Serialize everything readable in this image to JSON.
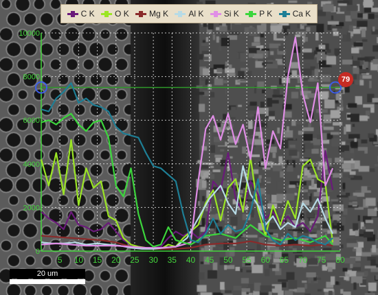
{
  "legend": [
    {
      "label": "C  K",
      "color": "#6a1a7a"
    },
    {
      "label": "O  K",
      "color": "#9be624"
    },
    {
      "label": "Mg K",
      "color": "#8a2a2a"
    },
    {
      "label": "Al K",
      "color": "#b7dbe6"
    },
    {
      "label": "Si K",
      "color": "#e08ee6"
    },
    {
      "label": "P  K",
      "color": "#3cd63c"
    },
    {
      "label": "Ca K",
      "color": "#1e7f96"
    }
  ],
  "scale_bar": {
    "label": "20 um"
  },
  "marker": {
    "label": "79"
  },
  "chart_data": {
    "type": "line",
    "xlim": [
      0,
      80
    ],
    "ylim": [
      0,
      10000
    ],
    "x_ticks": [
      "5",
      "10",
      "15",
      "20",
      "25",
      "30",
      "35",
      "40",
      "45",
      "50",
      "55",
      "60",
      "65",
      "70",
      "75",
      "80"
    ],
    "y_ticks": [
      "0",
      "2000",
      "4000",
      "6000",
      "8000",
      "10000"
    ],
    "grid": true,
    "legend_position": "top",
    "cursor_line_y": 7500,
    "axis_color": "#44d63c",
    "series": [
      {
        "name": "C  K",
        "color": "#6a1a7a",
        "x": [
          0,
          2,
          4,
          6,
          8,
          10,
          12,
          14,
          16,
          18,
          20,
          22,
          24,
          26,
          28,
          30,
          32,
          34,
          36,
          38,
          40,
          42,
          44,
          46,
          48,
          50,
          52,
          54,
          56,
          58,
          60,
          62,
          64,
          66,
          68,
          70,
          72,
          74,
          76,
          78
        ],
        "y": [
          1800,
          1500,
          1300,
          1000,
          1800,
          1200,
          1100,
          900,
          1000,
          1300,
          900,
          500,
          300,
          200,
          150,
          150,
          200,
          600,
          900,
          700,
          900,
          600,
          900,
          3200,
          2800,
          4500,
          2400,
          1800,
          3200,
          2600,
          1500,
          1800,
          1200,
          1600,
          1100,
          1300,
          900,
          1600,
          4600,
          2800
        ]
      },
      {
        "name": "O  K",
        "color": "#9be624",
        "x": [
          0,
          2,
          4,
          6,
          8,
          10,
          12,
          14,
          16,
          18,
          20,
          22,
          24,
          26,
          28,
          30,
          32,
          34,
          36,
          38,
          40,
          42,
          44,
          46,
          48,
          50,
          52,
          54,
          56,
          58,
          60,
          62,
          64,
          66,
          68,
          70,
          72,
          74,
          76,
          78
        ],
        "y": [
          4200,
          3000,
          4500,
          2600,
          5100,
          2100,
          3800,
          2900,
          3200,
          1600,
          1400,
          600,
          300,
          200,
          150,
          100,
          100,
          300,
          200,
          600,
          900,
          1200,
          2200,
          2800,
          1400,
          2900,
          3300,
          1800,
          4300,
          1900,
          700,
          2100,
          1200,
          2300,
          1500,
          3900,
          4200,
          3300,
          3100,
          400
        ]
      },
      {
        "name": "Mg K",
        "color": "#8a2a2a",
        "x": [
          0,
          4,
          8,
          12,
          16,
          20,
          24,
          28,
          32,
          36,
          40,
          44,
          48,
          52,
          56,
          60,
          64,
          68,
          72,
          76,
          78
        ],
        "y": [
          700,
          650,
          600,
          550,
          500,
          400,
          200,
          100,
          100,
          100,
          150,
          300,
          350,
          350,
          450,
          300,
          250,
          300,
          250,
          300,
          250
        ]
      },
      {
        "name": "Al K",
        "color": "#b7dbe6",
        "x": [
          0,
          3,
          6,
          9,
          12,
          15,
          18,
          21,
          24,
          27,
          30,
          33,
          36,
          39,
          42,
          45,
          48,
          50,
          52,
          54,
          56,
          58,
          60,
          62,
          64,
          66,
          68,
          70,
          72,
          74,
          76,
          78
        ],
        "y": [
          400,
          350,
          350,
          400,
          300,
          350,
          300,
          250,
          150,
          100,
          100,
          150,
          200,
          600,
          1500,
          2400,
          3000,
          2200,
          1700,
          3900,
          2600,
          2100,
          1200,
          1600,
          1000,
          1300,
          1100,
          2200,
          1800,
          2400,
          1500,
          800
        ]
      },
      {
        "name": "Si K",
        "color": "#e08ee6",
        "x": [
          0,
          4,
          8,
          12,
          16,
          20,
          24,
          28,
          32,
          36,
          40,
          42,
          44,
          46,
          48,
          50,
          52,
          54,
          56,
          58,
          60,
          62,
          64,
          66,
          68,
          70,
          72,
          74,
          76,
          78
        ],
        "y": [
          300,
          350,
          300,
          250,
          250,
          250,
          200,
          150,
          150,
          200,
          400,
          3200,
          5600,
          6200,
          5100,
          6300,
          4900,
          5800,
          4200,
          6600,
          3800,
          5500,
          4700,
          8000,
          9800,
          7200,
          5900,
          7700,
          3000,
          3800
        ]
      },
      {
        "name": "P  K",
        "color": "#3cd63c",
        "x": [
          0,
          2,
          4,
          6,
          8,
          10,
          12,
          14,
          16,
          18,
          20,
          22,
          24,
          26,
          28,
          30,
          32,
          34,
          36,
          38,
          40,
          44,
          48,
          52,
          56,
          60,
          64,
          68,
          72,
          76,
          78
        ],
        "y": [
          5900,
          6000,
          5800,
          6100,
          6300,
          5800,
          5500,
          5900,
          6000,
          5200,
          3000,
          2500,
          3800,
          1700,
          500,
          200,
          300,
          1100,
          500,
          400,
          300,
          700,
          800,
          600,
          1200,
          700,
          500,
          600,
          400,
          700,
          300
        ]
      },
      {
        "name": "Ca K",
        "color": "#1e7f96",
        "x": [
          0,
          2,
          4,
          6,
          8,
          10,
          12,
          14,
          16,
          18,
          20,
          22,
          24,
          26,
          28,
          30,
          32,
          34,
          36,
          38,
          40,
          42,
          44,
          46,
          48,
          50,
          52,
          54,
          56,
          58,
          60,
          62,
          64,
          66,
          68,
          70,
          72,
          74,
          76,
          78
        ],
        "y": [
          6500,
          6400,
          7000,
          7300,
          7700,
          6800,
          7000,
          6700,
          6600,
          6400,
          5700,
          5400,
          5300,
          5200,
          4500,
          3900,
          3800,
          3500,
          3200,
          1700,
          500,
          400,
          800,
          1500,
          800,
          1200,
          900,
          1000,
          1800,
          3300,
          1000,
          500,
          300,
          800,
          500,
          700,
          600,
          400,
          300,
          600
        ]
      }
    ]
  }
}
